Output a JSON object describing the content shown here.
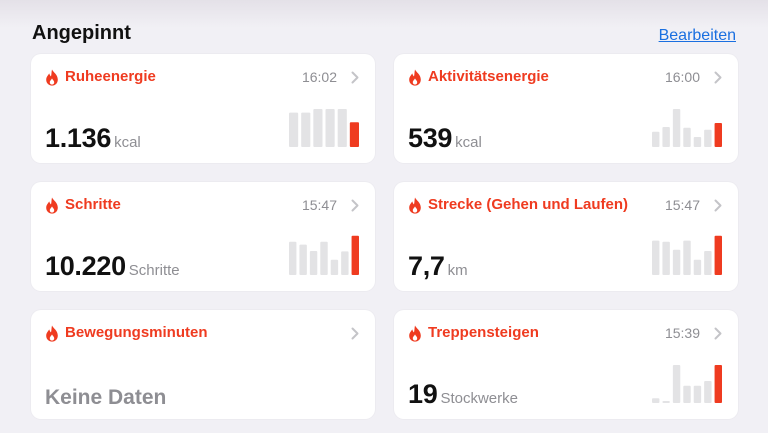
{
  "section": {
    "title": "Angepinnt",
    "edit_label": "Bearbeiten"
  },
  "colors": {
    "accent": "#ef3b20",
    "bar_inactive": "#e3e3e5",
    "link": "#1a6fe0",
    "secondary_text": "#8e8e93"
  },
  "icons": {
    "category": "flame-icon",
    "disclosure": "chevron-right-icon"
  },
  "cards": [
    {
      "title": "Ruheenergie",
      "time": "16:02",
      "value": "1.136",
      "unit": "kcal",
      "bars": [
        0.86,
        0.86,
        0.95,
        0.95,
        0.95,
        0.62
      ],
      "has_chart": true
    },
    {
      "title": "Aktivitätsenergie",
      "time": "16:00",
      "value": "539",
      "unit": "kcal",
      "bars": [
        0.38,
        0.5,
        0.95,
        0.48,
        0.25,
        0.43,
        0.6
      ],
      "has_chart": true
    },
    {
      "title": "Schritte",
      "time": "15:47",
      "value": "10.220",
      "unit": "Schritte",
      "bars": [
        0.83,
        0.76,
        0.6,
        0.83,
        0.38,
        0.59,
        0.98
      ],
      "has_chart": true
    },
    {
      "title": "Strecke (Gehen und Laufen)",
      "time": "15:47",
      "value": "7,7",
      "unit": "km",
      "bars": [
        0.86,
        0.83,
        0.63,
        0.86,
        0.38,
        0.6,
        0.98
      ],
      "has_chart": true
    },
    {
      "title": "Bewegungsminuten",
      "time": "",
      "value": "",
      "unit": "",
      "no_data": "Keine Daten",
      "bars": [],
      "has_chart": false
    },
    {
      "title": "Treppensteigen",
      "time": "15:39",
      "value": "19",
      "unit": "Stockwerke",
      "bars": [
        0.12,
        0.05,
        0.95,
        0.43,
        0.43,
        0.55,
        0.95
      ],
      "has_chart": true
    }
  ]
}
